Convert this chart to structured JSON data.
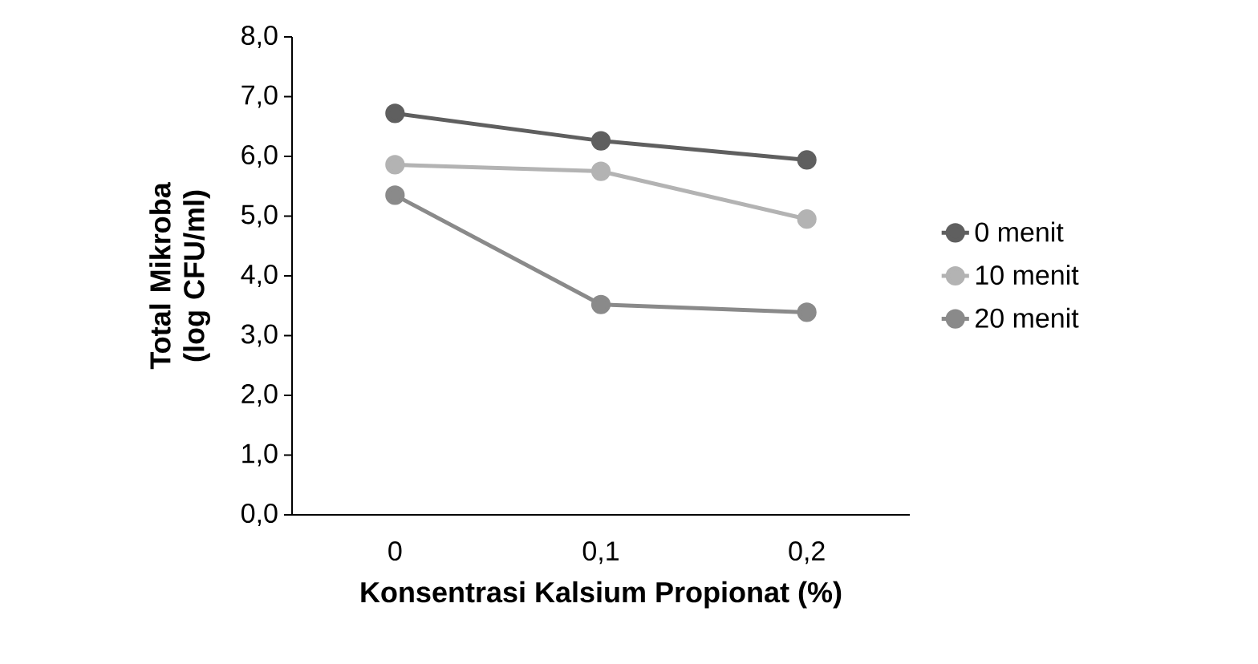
{
  "chart_data": {
    "type": "line",
    "xlabel": "Konsentrasi Kalsium Propionat (%)",
    "ylabel": "Total Mikroba (log CFU/ml)",
    "categories": [
      "0",
      "0,1",
      "0,2"
    ],
    "series": [
      {
        "name": "0 menit",
        "color": "#5f5f5f",
        "values": [
          6.72,
          6.26,
          5.94
        ]
      },
      {
        "name": "10 menit",
        "color": "#b3b3b3",
        "values": [
          5.86,
          5.75,
          4.95
        ]
      },
      {
        "name": "20 menit",
        "color": "#8a8a8a",
        "values": [
          5.35,
          3.52,
          3.39
        ]
      }
    ],
    "ylim": [
      0,
      8
    ],
    "yticks": [
      {
        "value": 0,
        "label": "0,0"
      },
      {
        "value": 1,
        "label": "1,0"
      },
      {
        "value": 2,
        "label": "2,0"
      },
      {
        "value": 3,
        "label": "3,0"
      },
      {
        "value": 4,
        "label": "4,0"
      },
      {
        "value": 5,
        "label": "5,0"
      },
      {
        "value": 6,
        "label": "6,0"
      },
      {
        "value": 7,
        "label": "7,0"
      },
      {
        "value": 8,
        "label": "8,0"
      }
    ],
    "grid": false,
    "legend": "right",
    "marker": "circle",
    "line_style": "solid"
  }
}
